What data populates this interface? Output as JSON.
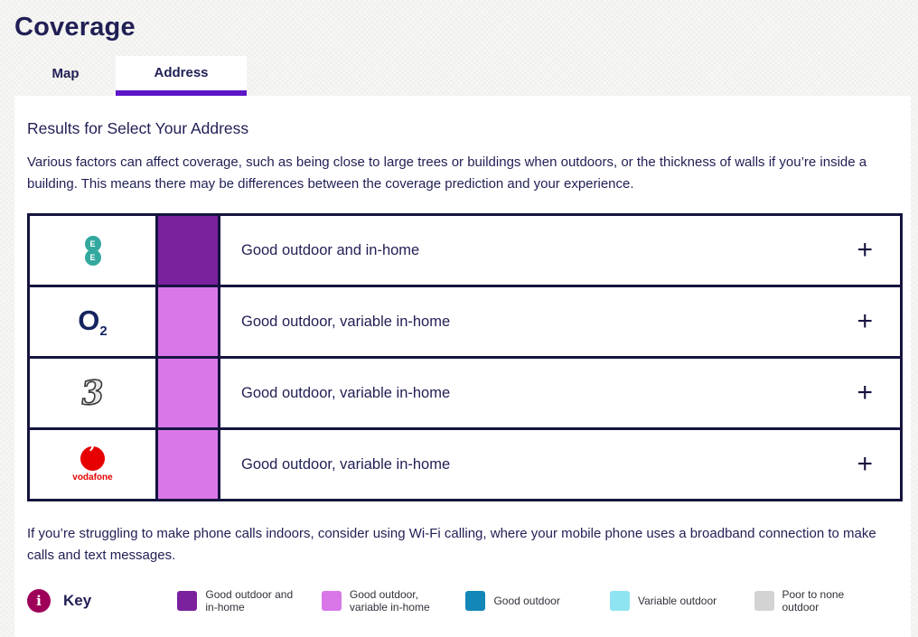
{
  "page": {
    "title": "Coverage"
  },
  "tabs": [
    {
      "label": "Map",
      "active": false
    },
    {
      "label": "Address",
      "active": true
    }
  ],
  "results": {
    "heading": "Results for Select Your Address",
    "intro": "Various factors can affect coverage, such as being close to large trees or buildings when outdoors, or the thickness of walls if you’re inside a building. This means there may be differences between the coverage prediction and your experience.",
    "wifi_note": "If you’re struggling to make phone calls indoors, consider using Wi-Fi calling, where your mobile phone uses a broadband connection to make calls and text messages."
  },
  "coverage_table": {
    "rows": [
      {
        "operator": "EE",
        "logo_letter": "E",
        "status": "Good outdoor and in-home",
        "status_color": "#7b219e",
        "expand_label": "+"
      },
      {
        "operator": "O2",
        "logo_text": "O",
        "logo_sub": "2",
        "status": "Good outdoor, variable in-home",
        "status_color": "#d977e9",
        "expand_label": "+"
      },
      {
        "operator": "Three",
        "logo_glyph": "3",
        "status": "Good outdoor, variable in-home",
        "status_color": "#d977e9",
        "expand_label": "+"
      },
      {
        "operator": "Vodafone",
        "logo_text": "vodafone",
        "status": "Good outdoor, variable in-home",
        "status_color": "#d977e9",
        "expand_label": "+"
      }
    ]
  },
  "key": {
    "label": "Key",
    "info_glyph": "i",
    "items": [
      {
        "label": "Good outdoor and in-home",
        "color": "#7b219e"
      },
      {
        "label": "Good outdoor, variable in-home",
        "color": "#d977e9"
      },
      {
        "label": "Good outdoor",
        "color": "#1287b8"
      },
      {
        "label": "Variable outdoor",
        "color": "#8ee4f0"
      },
      {
        "label": "Poor to none outdoor",
        "color": "#d3d3d3"
      }
    ]
  },
  "colors": {
    "accent_tab_underline": "#5b16c6",
    "heading_navy": "#201f55",
    "table_border_navy": "#15143f",
    "info_badge": "#9e0059",
    "ee_teal": "#33a89e",
    "vodafone_red": "#e60000"
  }
}
